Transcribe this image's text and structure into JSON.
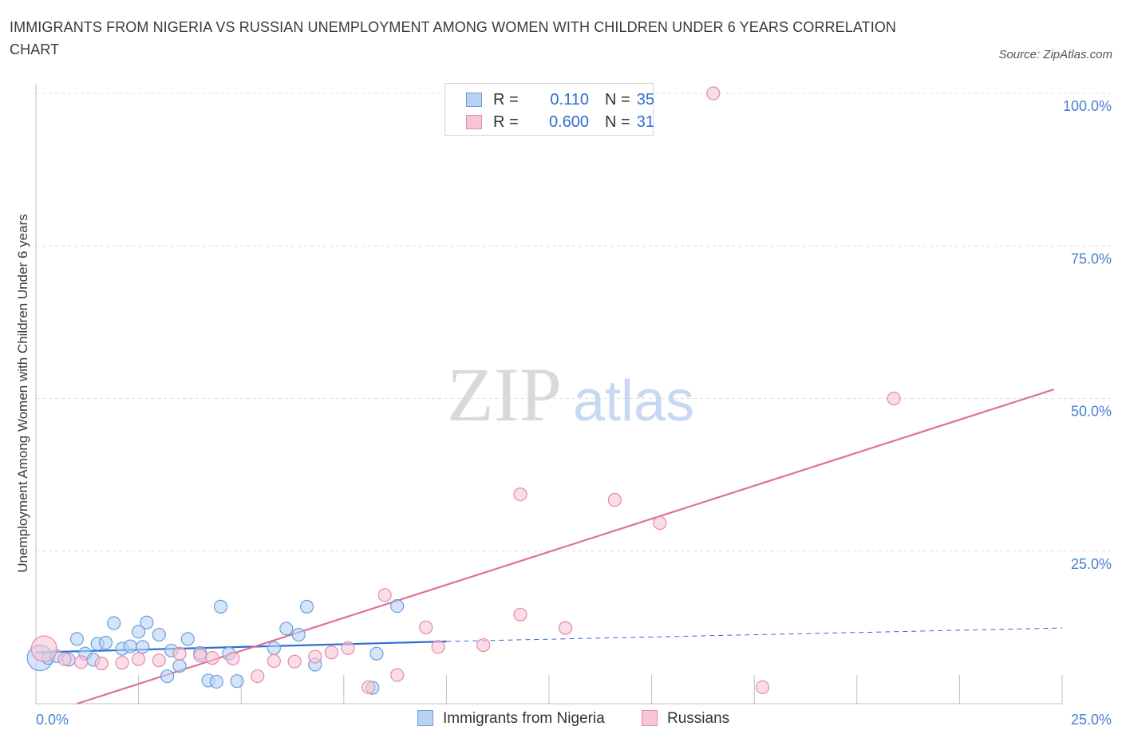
{
  "header": {
    "title": "IMMIGRANTS FROM NIGERIA VS RUSSIAN UNEMPLOYMENT AMONG WOMEN WITH CHILDREN UNDER 6 YEARS CORRELATION CHART",
    "source": "Source: ZipAtlas.com"
  },
  "watermark": {
    "zip": "ZIP",
    "atlas": "atlas"
  },
  "stats_legend": {
    "rows": [
      {
        "r_label": "R =",
        "r_value": "0.110",
        "n_label": "N =",
        "n_value": "35"
      },
      {
        "r_label": "R =",
        "r_value": "0.600",
        "n_label": "N =",
        "n_value": "31"
      }
    ]
  },
  "bottom_legend": {
    "items": [
      {
        "label": "Immigrants from Nigeria"
      },
      {
        "label": "Russians"
      }
    ]
  },
  "colors": {
    "nigeria_fill": "#b8d2f5",
    "nigeria_stroke": "#6a9ee0",
    "nigeria_line": "#2f6dd0",
    "russians_fill": "#f7c6d6",
    "russians_stroke": "#e58aa9",
    "russians_line": "#e0709a",
    "grid": "#dddddd",
    "tick_label": "#4a7fd0"
  },
  "chart_data": {
    "type": "scatter",
    "title": "IMMIGRANTS FROM NIGERIA VS RUSSIAN UNEMPLOYMENT AMONG WOMEN WITH CHILDREN UNDER 6 YEARS CORRELATION CHART",
    "xlabel": "",
    "ylabel": "Unemployment Among Women with Children Under 6 years",
    "xlim": [
      0,
      25
    ],
    "ylim": [
      0,
      100
    ],
    "x_tick_labels": [
      "0.0%",
      "25.0%"
    ],
    "y_ticks": [
      25,
      50,
      75,
      100
    ],
    "y_tick_labels": [
      "25.0%",
      "50.0%",
      "75.0%",
      "100.0%"
    ],
    "grid": true,
    "legend_position": "top-center",
    "series": [
      {
        "name": "Immigrants from Nigeria",
        "R": 0.11,
        "N": 35,
        "trend": {
          "x": [
            0,
            10
          ],
          "y": [
            8.4,
            10.2
          ],
          "dashed_to": [
            25,
            12.4
          ]
        },
        "points": [
          {
            "x": 0.1,
            "y": 7.5,
            "big": true
          },
          {
            "x": 0.3,
            "y": 7.5
          },
          {
            "x": 0.5,
            "y": 7.8
          },
          {
            "x": 0.8,
            "y": 7.2
          },
          {
            "x": 1.0,
            "y": 10.6
          },
          {
            "x": 1.2,
            "y": 8.2
          },
          {
            "x": 1.4,
            "y": 7.2
          },
          {
            "x": 1.5,
            "y": 9.8
          },
          {
            "x": 1.7,
            "y": 10.0
          },
          {
            "x": 1.9,
            "y": 13.2
          },
          {
            "x": 2.1,
            "y": 9.0
          },
          {
            "x": 2.3,
            "y": 9.4
          },
          {
            "x": 2.5,
            "y": 11.8
          },
          {
            "x": 2.6,
            "y": 9.3
          },
          {
            "x": 2.7,
            "y": 13.3
          },
          {
            "x": 3.0,
            "y": 11.3
          },
          {
            "x": 3.2,
            "y": 4.5
          },
          {
            "x": 3.3,
            "y": 8.7
          },
          {
            "x": 3.5,
            "y": 6.2
          },
          {
            "x": 3.7,
            "y": 10.6
          },
          {
            "x": 4.0,
            "y": 8.3
          },
          {
            "x": 4.2,
            "y": 3.8
          },
          {
            "x": 4.4,
            "y": 3.6
          },
          {
            "x": 4.5,
            "y": 15.9
          },
          {
            "x": 4.7,
            "y": 8.2
          },
          {
            "x": 4.9,
            "y": 3.7
          },
          {
            "x": 5.8,
            "y": 9.1
          },
          {
            "x": 6.1,
            "y": 12.3
          },
          {
            "x": 6.4,
            "y": 11.3
          },
          {
            "x": 6.6,
            "y": 15.9
          },
          {
            "x": 6.8,
            "y": 6.4
          },
          {
            "x": 8.2,
            "y": 2.6
          },
          {
            "x": 8.3,
            "y": 8.2
          },
          {
            "x": 8.8,
            "y": 16.0
          }
        ]
      },
      {
        "name": "Russians",
        "R": 0.6,
        "N": 31,
        "trend": {
          "x": [
            1.0,
            24.8
          ],
          "y": [
            0,
            51.5
          ]
        },
        "points": [
          {
            "x": 0.2,
            "y": 9.0,
            "big": true
          },
          {
            "x": 0.7,
            "y": 7.3
          },
          {
            "x": 1.1,
            "y": 6.8
          },
          {
            "x": 1.6,
            "y": 6.6
          },
          {
            "x": 2.1,
            "y": 6.7
          },
          {
            "x": 2.5,
            "y": 7.3
          },
          {
            "x": 3.0,
            "y": 7.1
          },
          {
            "x": 3.5,
            "y": 8.2
          },
          {
            "x": 4.0,
            "y": 7.9
          },
          {
            "x": 4.3,
            "y": 7.5
          },
          {
            "x": 4.8,
            "y": 7.4
          },
          {
            "x": 5.4,
            "y": 4.5
          },
          {
            "x": 5.8,
            "y": 7.0
          },
          {
            "x": 6.3,
            "y": 6.9
          },
          {
            "x": 6.8,
            "y": 7.7
          },
          {
            "x": 7.2,
            "y": 8.4
          },
          {
            "x": 7.6,
            "y": 9.1
          },
          {
            "x": 8.1,
            "y": 2.7
          },
          {
            "x": 8.5,
            "y": 17.8
          },
          {
            "x": 8.8,
            "y": 4.7
          },
          {
            "x": 9.5,
            "y": 12.5
          },
          {
            "x": 9.8,
            "y": 9.3
          },
          {
            "x": 10.9,
            "y": 9.6
          },
          {
            "x": 11.8,
            "y": 34.3
          },
          {
            "x": 11.8,
            "y": 14.6
          },
          {
            "x": 12.9,
            "y": 12.4
          },
          {
            "x": 14.1,
            "y": 33.4
          },
          {
            "x": 15.2,
            "y": 29.6
          },
          {
            "x": 16.5,
            "y": 100.0
          },
          {
            "x": 17.7,
            "y": 2.7
          },
          {
            "x": 20.9,
            "y": 50.0
          }
        ]
      }
    ]
  }
}
